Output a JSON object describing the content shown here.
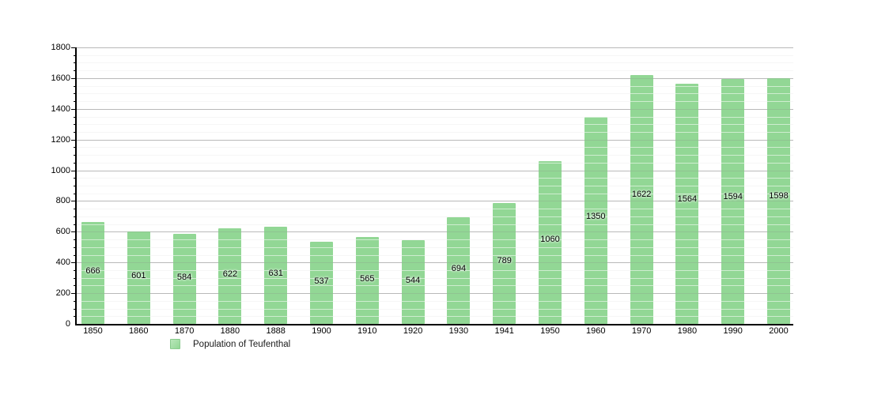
{
  "chart_data": {
    "type": "bar",
    "title": "",
    "xlabel": "",
    "ylabel": "",
    "categories": [
      "1850",
      "1860",
      "1870",
      "1880",
      "1888",
      "1900",
      "1910",
      "1920",
      "1930",
      "1941",
      "1950",
      "1960",
      "1970",
      "1980",
      "1990",
      "2000"
    ],
    "values": [
      666,
      601,
      584,
      622,
      631,
      537,
      565,
      544,
      694,
      789,
      1060,
      1350,
      1622,
      1564,
      1594,
      1598
    ],
    "series_name": "Population of Teufenthal",
    "ylim": [
      0,
      1800
    ],
    "yticks": [
      0,
      200,
      400,
      600,
      800,
      1000,
      1200,
      1400,
      1600,
      1800
    ],
    "minor_grid_interval": 50,
    "major_grid_interval": 200,
    "grid": true,
    "legend_position": "bottom-left",
    "bar_labels_shown": true
  },
  "colors": {
    "bar_fill": "#92d795",
    "minor_gridline": "#ececec",
    "major_gridline": "#c8c8c8",
    "axis": "#000000",
    "label_text": "#000000",
    "background": "#ffffff"
  },
  "legend": {
    "label": "Population of Teufenthal",
    "swatch_color": "#92d795"
  }
}
